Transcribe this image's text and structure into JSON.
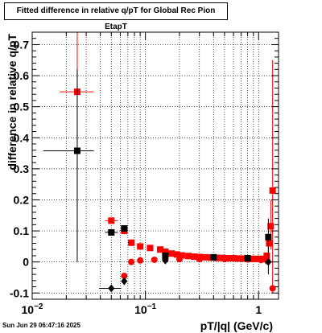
{
  "chart_data": {
    "type": "scatter",
    "title": "Fitted difference in relative q/pT for Global Rec Pion EtapT",
    "xlabel": "pT/|q| (GeV/c)",
    "ylabel": "difference in relative q/pT",
    "x_scale": "log",
    "xlim": [
      0.01,
      1.5
    ],
    "ylim": [
      -0.12,
      0.74
    ],
    "x_ticks": [
      {
        "v": 0.01,
        "b": "10",
        "e": "−2"
      },
      {
        "v": 0.1,
        "b": "10",
        "e": "−1"
      },
      {
        "v": 1,
        "b": "1",
        "e": ""
      }
    ],
    "y_ticks": [
      "-0.1",
      "0",
      "0.1",
      "0.2",
      "0.3",
      "0.4",
      "0.5",
      "0.6",
      "0.7"
    ],
    "grid": true,
    "series": [
      {
        "marker": "square",
        "color": "#ff0000",
        "points": [
          {
            "x": 0.025,
            "y": 0.548,
            "xlo": 0.0175,
            "xhi": 0.035,
            "ylo": 0.035,
            "yhi": 0.74
          },
          {
            "x": 0.05,
            "y": 0.133,
            "xlo": 0.044,
            "xhi": 0.057
          },
          {
            "x": 0.065,
            "y": 0.1
          },
          {
            "x": 0.075,
            "y": 0.062
          },
          {
            "x": 0.09,
            "y": 0.05
          },
          {
            "x": 0.11,
            "y": 0.045
          },
          {
            "x": 0.135,
            "y": 0.04
          },
          {
            "x": 0.15,
            "y": 0.033
          },
          {
            "x": 0.17,
            "y": 0.027
          },
          {
            "x": 0.19,
            "y": 0.024
          },
          {
            "x": 0.21,
            "y": 0.021
          },
          {
            "x": 0.24,
            "y": 0.019
          },
          {
            "x": 0.27,
            "y": 0.017
          },
          {
            "x": 0.3,
            "y": 0.016
          },
          {
            "x": 0.34,
            "y": 0.015
          },
          {
            "x": 0.38,
            "y": 0.014
          },
          {
            "x": 0.43,
            "y": 0.013
          },
          {
            "x": 0.48,
            "y": 0.013
          },
          {
            "x": 0.54,
            "y": 0.012
          },
          {
            "x": 0.6,
            "y": 0.012
          },
          {
            "x": 0.67,
            "y": 0.011
          },
          {
            "x": 0.75,
            "y": 0.011
          },
          {
            "x": 0.84,
            "y": 0.01
          },
          {
            "x": 0.93,
            "y": 0.01
          },
          {
            "x": 1.02,
            "y": 0.01
          },
          {
            "x": 1.1,
            "y": 0.01
          },
          {
            "x": 1.18,
            "y": 0.02
          },
          {
            "x": 1.24,
            "y": 0.06
          },
          {
            "x": 1.28,
            "y": 0.115,
            "ylo": 0.04,
            "yhi": 0.2
          },
          {
            "x": 1.33,
            "y": 0.23,
            "ylo": -0.1,
            "yhi": 0.65
          }
        ]
      },
      {
        "marker": "circle",
        "color": "#ff0000",
        "points": [
          {
            "x": 0.065,
            "y": -0.045
          },
          {
            "x": 0.075,
            "y": 0.0
          },
          {
            "x": 0.09,
            "y": 0.005
          },
          {
            "x": 0.12,
            "y": 0.007
          },
          {
            "x": 0.15,
            "y": 0.008
          },
          {
            "x": 0.2,
            "y": 0.009
          },
          {
            "x": 0.3,
            "y": 0.009
          },
          {
            "x": 0.5,
            "y": 0.009
          },
          {
            "x": 0.8,
            "y": 0.008
          },
          {
            "x": 1.05,
            "y": 0.006
          },
          {
            "x": 1.2,
            "y": 0.002
          },
          {
            "x": 1.33,
            "y": -0.085
          }
        ]
      },
      {
        "marker": "square",
        "color": "#000000",
        "points": [
          {
            "x": 0.025,
            "y": 0.358,
            "xlo": 0.0125,
            "xhi": 0.035,
            "ylo": 0.0,
            "yhi": 0.62
          },
          {
            "x": 0.05,
            "y": 0.095,
            "xlo": 0.044,
            "xhi": 0.057
          },
          {
            "x": 0.065,
            "y": 0.108
          },
          {
            "x": 0.15,
            "y": 0.02
          },
          {
            "x": 0.4,
            "y": 0.015
          },
          {
            "x": 0.8,
            "y": 0.012
          },
          {
            "x": 1.22,
            "y": 0.08,
            "ylo": 0.02,
            "yhi": 0.14
          }
        ]
      },
      {
        "marker": "diamond",
        "color": "#000000",
        "points": [
          {
            "x": 0.05,
            "y": -0.085,
            "xlo": 0.039,
            "xhi": 0.061
          },
          {
            "x": 0.065,
            "y": -0.062
          },
          {
            "x": 0.15,
            "y": 0.005
          },
          {
            "x": 1.22,
            "y": 0.0,
            "ylo": -0.04,
            "yhi": 0.05
          }
        ]
      }
    ]
  },
  "footer": {
    "timestamp": "Sun Jun 29 06:47:16 2025"
  }
}
